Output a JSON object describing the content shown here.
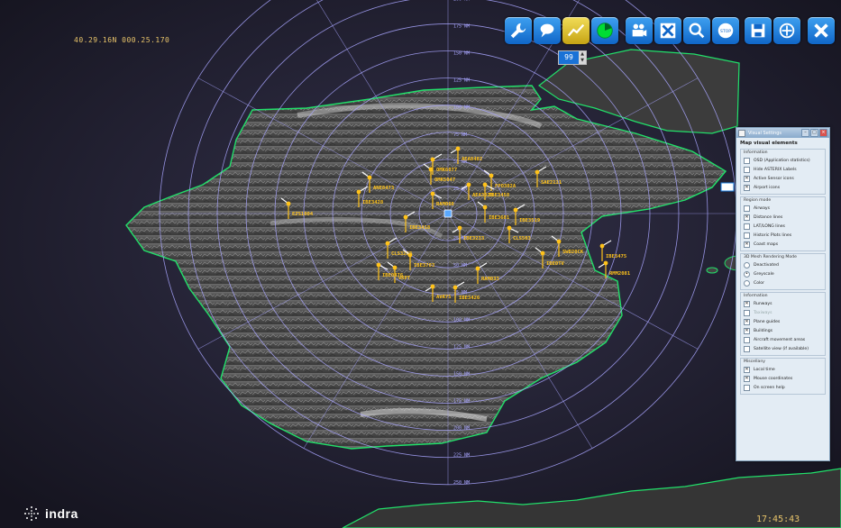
{
  "status": {
    "mouse_coordinates": "40.29.16N 000.25.170",
    "clock": "17:45:43"
  },
  "brand": {
    "name": "indra"
  },
  "toolbar": {
    "buttons": [
      {
        "id": "settings",
        "icon": "wrench-icon"
      },
      {
        "id": "messages",
        "icon": "chat-bubble-icon"
      },
      {
        "id": "tracks",
        "icon": "trend-line-icon",
        "active": true
      },
      {
        "id": "radar",
        "icon": "radar-icon"
      },
      {
        "id": "record",
        "icon": "film-camera-icon"
      },
      {
        "id": "filter",
        "icon": "cross-arrows-icon"
      },
      {
        "id": "search",
        "icon": "magnifier-icon"
      },
      {
        "id": "stop",
        "icon": "stop-icon"
      },
      {
        "id": "save",
        "icon": "floppy-disk-icon"
      },
      {
        "id": "zoom",
        "icon": "zoom-target-icon"
      },
      {
        "id": "close",
        "icon": "close-icon"
      }
    ],
    "stepper_value": "99"
  },
  "map": {
    "range_rings": [
      "25 NM",
      "50 NM",
      "75 NM",
      "100 NM",
      "125 NM",
      "150 NM",
      "175 NM",
      "200 NM",
      "225 NM",
      "250 NM"
    ],
    "aircraft": [
      {
        "label": "AEA8402"
      },
      {
        "label": "OMK6077"
      },
      {
        "label": "FPO302A"
      },
      {
        "label": "TBE3458"
      },
      {
        "label": "ANE8473"
      },
      {
        "label": "IBE3428"
      },
      {
        "label": "AEA3028"
      },
      {
        "label": "SAE2111"
      },
      {
        "label": "EZS1004"
      },
      {
        "label": "RAM060"
      },
      {
        "label": "IBE3681"
      },
      {
        "label": "IBE3519"
      },
      {
        "label": "IBE3233"
      },
      {
        "label": "CLS3203"
      },
      {
        "label": "IBE3703"
      },
      {
        "label": "IBE0476"
      },
      {
        "label": "VKPT"
      },
      {
        "label": "RAM033"
      },
      {
        "label": "AVR75"
      },
      {
        "label": "IBE3426"
      },
      {
        "label": "IBE0TV"
      },
      {
        "label": "CLS503"
      },
      {
        "label": "SWD20CK"
      },
      {
        "label": "IBE3475"
      },
      {
        "label": "RMM2081"
      },
      {
        "label": "IBE3418"
      },
      {
        "label": "OMK5047"
      }
    ]
  },
  "visual_settings": {
    "window_title": "Visual Settings",
    "heading": "Map visual elements",
    "groups": [
      {
        "title": "Information",
        "options": [
          {
            "label": "OSD (Application statistics)",
            "checked": false,
            "type": "check"
          },
          {
            "label": "Hide ASTERIX Labels",
            "checked": false,
            "type": "check"
          },
          {
            "label": "Active Sensor icons",
            "checked": true,
            "type": "check"
          },
          {
            "label": "Airport icons",
            "checked": true,
            "type": "check"
          }
        ]
      },
      {
        "title": "Region mode",
        "options": [
          {
            "label": "Airways",
            "checked": false,
            "type": "check"
          },
          {
            "label": "Distance lines",
            "checked": true,
            "type": "check"
          },
          {
            "label": "LAT/LONG lines",
            "checked": false,
            "type": "check"
          },
          {
            "label": "Historic Plots lines",
            "checked": false,
            "type": "check"
          },
          {
            "label": "Coast maps",
            "checked": true,
            "type": "check"
          }
        ]
      },
      {
        "title": "3D Mesh Rendering Mode",
        "options": [
          {
            "label": "Deactivated",
            "checked": false,
            "type": "radio"
          },
          {
            "label": "Greyscale",
            "checked": true,
            "type": "radio"
          },
          {
            "label": "Color",
            "checked": false,
            "type": "radio"
          }
        ]
      },
      {
        "title": "Information",
        "options": [
          {
            "label": "Runways",
            "checked": true,
            "type": "check"
          },
          {
            "label": "Taxiways",
            "checked": false,
            "type": "check",
            "disabled": true
          },
          {
            "label": "Plane guides",
            "checked": true,
            "type": "check"
          },
          {
            "label": "Buildings",
            "checked": true,
            "type": "check"
          },
          {
            "label": "Aircraft movement areas",
            "checked": false,
            "type": "check"
          },
          {
            "label": "Satellite view (if available)",
            "checked": false,
            "type": "check"
          }
        ]
      },
      {
        "title": "Miscellany",
        "options": [
          {
            "label": "Local time",
            "checked": true,
            "type": "check"
          },
          {
            "label": "Mouse coordinates",
            "checked": true,
            "type": "check"
          },
          {
            "label": "On screen help",
            "checked": false,
            "type": "check"
          }
        ]
      }
    ]
  },
  "colors": {
    "coast": "#22e06a",
    "rings": "#a9a6ff",
    "aircraft": "#ffc21a",
    "toolbar": "#1a7fe0"
  }
}
